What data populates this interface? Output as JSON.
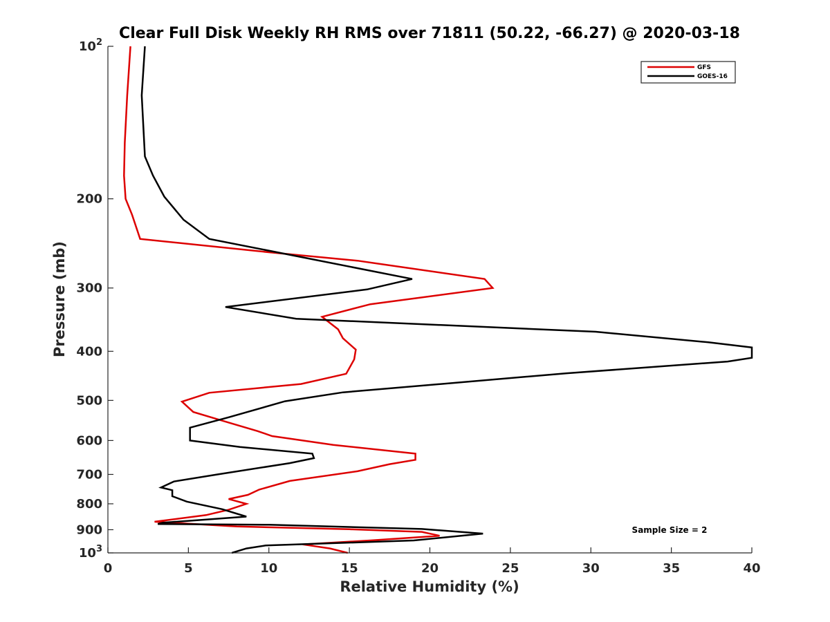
{
  "chart_data": {
    "type": "line",
    "title": "Clear Full Disk Weekly RH RMS over 71811 (50.22, -66.27) @ 2020-03-18",
    "xlabel": "Relative Humidity (%)",
    "ylabel": "Pressure (mb)",
    "xlim": [
      0,
      40
    ],
    "ylim": [
      100,
      1000
    ],
    "y_scale": "log",
    "y_reversed": true,
    "grid": false,
    "legend_position": "top-right",
    "x_ticks": [
      "0",
      "5",
      "10",
      "15",
      "20",
      "25",
      "30",
      "35",
      "40"
    ],
    "y_ticks": [
      {
        "value": 100,
        "base": "10",
        "exp": "2"
      },
      {
        "value": 200,
        "label": "200"
      },
      {
        "value": 300,
        "label": "300"
      },
      {
        "value": 400,
        "label": "400"
      },
      {
        "value": 500,
        "label": "500"
      },
      {
        "value": 600,
        "label": "600"
      },
      {
        "value": 700,
        "label": "700"
      },
      {
        "value": 800,
        "label": "800"
      },
      {
        "value": 900,
        "label": "900"
      },
      {
        "value": 1000,
        "base": "10",
        "exp": "3"
      }
    ],
    "annotation": "Sample Size = 2",
    "series": [
      {
        "name": "GFS",
        "color": "#dd0000",
        "points": [
          [
            1.4,
            100
          ],
          [
            1.2,
            125
          ],
          [
            1.05,
            155
          ],
          [
            1.0,
            180
          ],
          [
            1.1,
            200
          ],
          [
            1.5,
            215
          ],
          [
            2.0,
            240
          ],
          [
            10.0,
            255
          ],
          [
            15.5,
            265
          ],
          [
            23.4,
            288
          ],
          [
            23.9,
            300
          ],
          [
            16.3,
            323
          ],
          [
            13.3,
            342
          ],
          [
            14.3,
            362
          ],
          [
            14.6,
            377
          ],
          [
            15.4,
            397
          ],
          [
            15.3,
            415
          ],
          [
            14.8,
            443
          ],
          [
            12.0,
            464
          ],
          [
            6.3,
            483
          ],
          [
            4.6,
            503
          ],
          [
            5.3,
            527
          ],
          [
            7.5,
            553
          ],
          [
            9.3,
            575
          ],
          [
            10.2,
            588
          ],
          [
            14.0,
            612
          ],
          [
            19.1,
            637
          ],
          [
            19.1,
            655
          ],
          [
            17.5,
            668
          ],
          [
            15.5,
            690
          ],
          [
            11.3,
            721
          ],
          [
            9.4,
            750
          ],
          [
            8.7,
            768
          ],
          [
            7.5,
            783
          ],
          [
            8.6,
            800
          ],
          [
            7.5,
            822
          ],
          [
            6.1,
            842
          ],
          [
            2.9,
            868
          ],
          [
            8.0,
            887
          ],
          [
            15.0,
            898
          ],
          [
            19.5,
            909
          ],
          [
            20.6,
            925
          ],
          [
            16.3,
            945
          ],
          [
            12.1,
            962
          ],
          [
            13.8,
            980
          ],
          [
            14.9,
            1000
          ]
        ]
      },
      {
        "name": "GOES-16",
        "color": "#000000",
        "points": [
          [
            2.3,
            100
          ],
          [
            2.1,
            125
          ],
          [
            2.3,
            165
          ],
          [
            2.8,
            180
          ],
          [
            3.5,
            198
          ],
          [
            4.7,
            220
          ],
          [
            6.3,
            240
          ],
          [
            10.5,
            255
          ],
          [
            18.9,
            288
          ],
          [
            16.1,
            302
          ],
          [
            7.3,
            327
          ],
          [
            11.7,
            345
          ],
          [
            30.3,
            366
          ],
          [
            37.3,
            384
          ],
          [
            40.0,
            393
          ],
          [
            40.0,
            412
          ],
          [
            38.5,
            419
          ],
          [
            28.5,
            442
          ],
          [
            14.6,
            482
          ],
          [
            11.0,
            502
          ],
          [
            7.5,
            540
          ],
          [
            5.1,
            566
          ],
          [
            5.1,
            600
          ],
          [
            8.2,
            618
          ],
          [
            12.7,
            637
          ],
          [
            12.8,
            650
          ],
          [
            11.3,
            665
          ],
          [
            6.8,
            700
          ],
          [
            4.1,
            723
          ],
          [
            3.3,
            743
          ],
          [
            4.0,
            752
          ],
          [
            4.0,
            773
          ],
          [
            4.9,
            792
          ],
          [
            7.1,
            820
          ],
          [
            8.6,
            848
          ],
          [
            3.4,
            872
          ],
          [
            3.1,
            877
          ],
          [
            10.0,
            880
          ],
          [
            19.5,
            897
          ],
          [
            23.3,
            916
          ],
          [
            19.0,
            945
          ],
          [
            9.8,
            967
          ],
          [
            8.6,
            980
          ],
          [
            7.7,
            1000
          ]
        ]
      }
    ]
  }
}
